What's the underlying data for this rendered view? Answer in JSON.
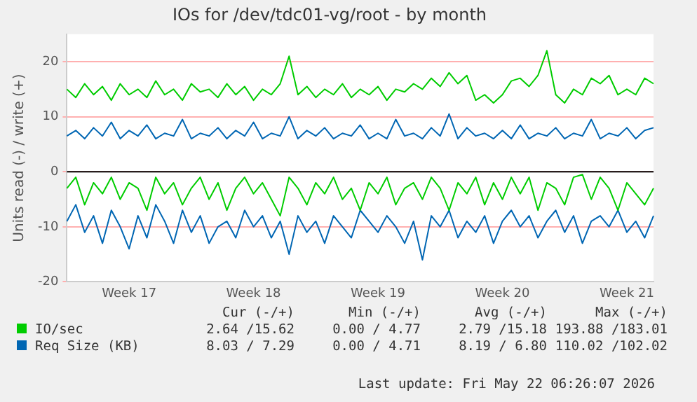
{
  "chart_data": {
    "type": "line",
    "title": "IOs for /dev/tdc01-vg/root - by month",
    "ylabel": "Units read (-) / write (+)",
    "categories": [
      null,
      null,
      null,
      null,
      null,
      null,
      null,
      "Week 17",
      null,
      null,
      null,
      null,
      null,
      null,
      null,
      null,
      null,
      null,
      null,
      null,
      null,
      "Week 18",
      null,
      null,
      null,
      null,
      null,
      null,
      null,
      null,
      null,
      null,
      null,
      null,
      null,
      "Week 19",
      null,
      null,
      null,
      null,
      null,
      null,
      null,
      null,
      null,
      null,
      null,
      null,
      null,
      "Week 20",
      null,
      null,
      null,
      null,
      null,
      null,
      null,
      null,
      null,
      null,
      null,
      null,
      null,
      "Week 21",
      null,
      null,
      null
    ],
    "series": [
      {
        "name": "IO/sec",
        "color": "#00cc00",
        "values": [
          15,
          13.5,
          16,
          14,
          15.5,
          13,
          16,
          14,
          15,
          13.5,
          16.5,
          14,
          15,
          13,
          16,
          14.5,
          15,
          13.5,
          16,
          14,
          15.5,
          13,
          15,
          14,
          16,
          21,
          14,
          15.5,
          13.5,
          15,
          14,
          16,
          13.5,
          15,
          14,
          15.5,
          13,
          15,
          14.5,
          16,
          15,
          17,
          15.5,
          18,
          16,
          17.5,
          13,
          14,
          12.5,
          14,
          16.5,
          17,
          15.5,
          17.5,
          22,
          14,
          12.5,
          15,
          14,
          17,
          16,
          17.5,
          14,
          15,
          14,
          17,
          16
        ]
      },
      {
        "name": "Req Size (KB)",
        "color": "#0066b3",
        "values": [
          6.5,
          7.5,
          6,
          8,
          6.5,
          9,
          6,
          7.5,
          6.5,
          8.5,
          6,
          7,
          6.5,
          9.5,
          6,
          7,
          6.5,
          8,
          6,
          7.5,
          6.5,
          9,
          6,
          7,
          6.5,
          10,
          6,
          7.5,
          6.5,
          8,
          6,
          7,
          6.5,
          8.5,
          6,
          7,
          6,
          9.5,
          6.5,
          7,
          6,
          8,
          6.5,
          10.5,
          6,
          8,
          6.5,
          7,
          6,
          7.5,
          6,
          8.5,
          6,
          7,
          6.5,
          8,
          6,
          7,
          6.5,
          9.5,
          6,
          7,
          6.5,
          8,
          6,
          7.5,
          8
        ]
      },
      {
        "color": "#00cc00",
        "values": [
          -3,
          -1,
          -6,
          -2,
          -4,
          -1,
          -5,
          -2,
          -3,
          -7,
          -1,
          -4,
          -2,
          -6,
          -3,
          -1,
          -5,
          -2,
          -7,
          -3,
          -1,
          -4,
          -2,
          -5,
          -8,
          -1,
          -3,
          -6,
          -2,
          -4,
          -1,
          -5,
          -3,
          -7,
          -2,
          -4,
          -1,
          -6,
          -3,
          -2,
          -5,
          -1,
          -3,
          -7,
          -2,
          -4,
          -1,
          -6,
          -2,
          -5,
          -1,
          -4,
          -1,
          -7,
          -2,
          -3,
          -6,
          -1,
          -0.5,
          -5,
          -1,
          -3,
          -7,
          -2,
          -4,
          -6,
          -3
        ]
      },
      {
        "color": "#0066b3",
        "values": [
          -9,
          -6,
          -11,
          -8,
          -13,
          -7,
          -10,
          -14,
          -8,
          -12,
          -6,
          -9,
          -13,
          -7,
          -11,
          -8,
          -13,
          -10,
          -9,
          -12,
          -7,
          -10,
          -8,
          -12,
          -9,
          -15,
          -8,
          -11,
          -9,
          -13,
          -8,
          -10,
          -12,
          -7,
          -9,
          -11,
          -8,
          -10,
          -13,
          -9,
          -16,
          -8,
          -10,
          -7,
          -12,
          -9,
          -11,
          -8,
          -13,
          -9,
          -7,
          -10,
          -8,
          -12,
          -9,
          -7,
          -11,
          -8,
          -13,
          -9,
          -8,
          -10,
          -7,
          -11,
          -9,
          -12,
          -8
        ]
      }
    ],
    "ylim": [
      -20,
      25
    ],
    "yticks": [
      -20,
      -10,
      0,
      10,
      20
    ],
    "ref_lines": [
      {
        "axis": "y",
        "value": 0,
        "color": "#000000"
      }
    ],
    "grid": "y",
    "legend": "bottom",
    "marker": "none",
    "line_style": "solid",
    "annotations": [
      "Cur (-/+)",
      "Min (-/+)",
      "Avg (-/+)",
      "Max (-/+)",
      "2.64 /15.62",
      "0.00 / 4.77",
      "2.79 /15.18",
      "193.88 /183.01",
      "8.03 / 7.29",
      "0.00 / 4.71",
      "8.19 / 6.80",
      "110.02 /102.02",
      "Last update: Fri May 22 06:26:07 2026"
    ]
  }
}
